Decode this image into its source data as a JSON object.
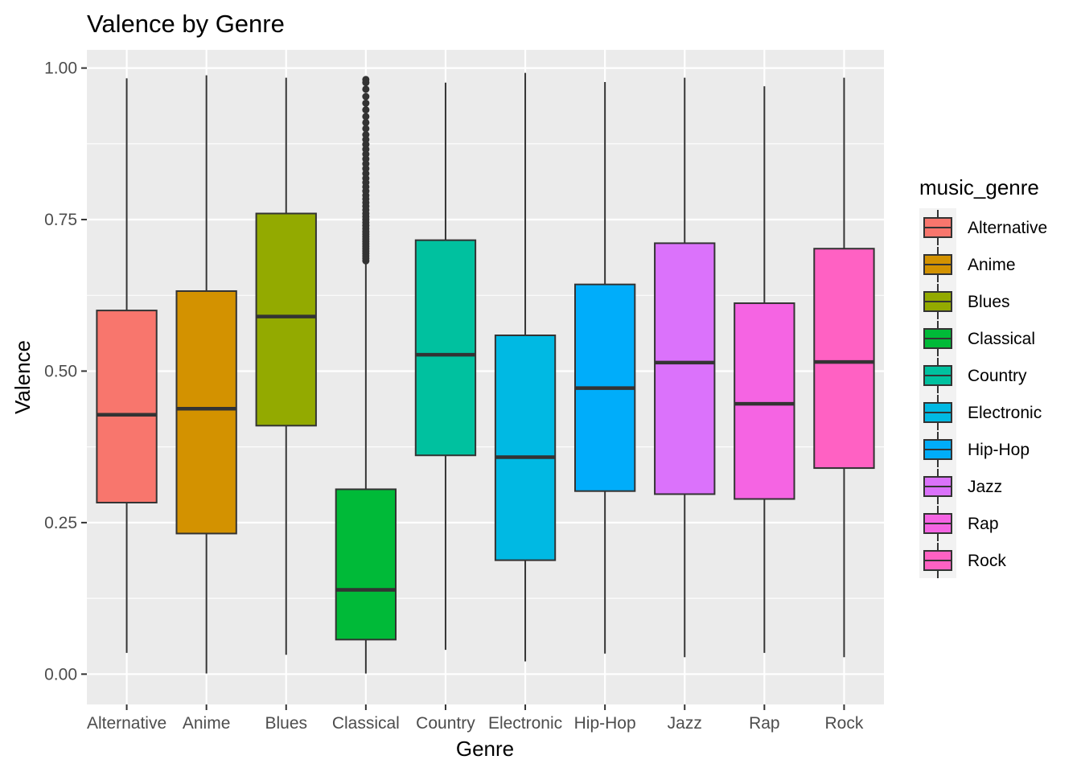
{
  "chart_data": {
    "type": "boxplot",
    "title": "Valence by Genre",
    "xlabel": "Genre",
    "ylabel": "Valence",
    "ylim": [
      -0.05,
      1.03
    ],
    "yticks": [
      0.0,
      0.25,
      0.5,
      0.75,
      1.0
    ],
    "ytick_labels": [
      "0.00",
      "0.25",
      "0.50",
      "0.75",
      "1.00"
    ],
    "grid": true,
    "legend": {
      "title": "music_genre",
      "position": "right"
    },
    "categories": [
      "Alternative",
      "Anime",
      "Blues",
      "Classical",
      "Country",
      "Electronic",
      "Hip-Hop",
      "Jazz",
      "Rap",
      "Rock"
    ],
    "series": [
      {
        "name": "Alternative",
        "color": "#F8766D",
        "whisker_low": 0.035,
        "q1": 0.283,
        "median": 0.428,
        "q3": 0.6,
        "whisker_high": 0.983
      },
      {
        "name": "Anime",
        "color": "#D39200",
        "whisker_low": 0.001,
        "q1": 0.232,
        "median": 0.438,
        "q3": 0.632,
        "whisker_high": 0.988
      },
      {
        "name": "Blues",
        "color": "#93AA00",
        "whisker_low": 0.032,
        "q1": 0.41,
        "median": 0.59,
        "q3": 0.76,
        "whisker_high": 0.984
      },
      {
        "name": "Classical",
        "color": "#00BA38",
        "whisker_low": 0.001,
        "q1": 0.057,
        "median": 0.139,
        "q3": 0.305,
        "whisker_high": 0.68,
        "outliers": [
          0.682,
          0.686,
          0.69,
          0.694,
          0.698,
          0.702,
          0.706,
          0.71,
          0.714,
          0.718,
          0.722,
          0.726,
          0.73,
          0.735,
          0.74,
          0.745,
          0.75,
          0.755,
          0.76,
          0.766,
          0.772,
          0.778,
          0.784,
          0.79,
          0.797,
          0.804,
          0.811,
          0.818,
          0.826,
          0.834,
          0.842,
          0.85,
          0.858,
          0.866,
          0.874,
          0.882,
          0.89,
          0.9,
          0.91,
          0.92,
          0.931,
          0.942,
          0.953,
          0.965,
          0.976,
          0.981
        ]
      },
      {
        "name": "Country",
        "color": "#00C19F",
        "whisker_low": 0.04,
        "q1": 0.361,
        "median": 0.527,
        "q3": 0.716,
        "whisker_high": 0.976
      },
      {
        "name": "Electronic",
        "color": "#00B9E3",
        "whisker_low": 0.021,
        "q1": 0.188,
        "median": 0.358,
        "q3": 0.559,
        "whisker_high": 0.992
      },
      {
        "name": "Hip-Hop",
        "color": "#00ADFA",
        "whisker_low": 0.034,
        "q1": 0.302,
        "median": 0.472,
        "q3": 0.643,
        "whisker_high": 0.977
      },
      {
        "name": "Jazz",
        "color": "#DB72FB",
        "whisker_low": 0.028,
        "q1": 0.297,
        "median": 0.514,
        "q3": 0.711,
        "whisker_high": 0.984
      },
      {
        "name": "Rap",
        "color": "#F564E3",
        "whisker_low": 0.035,
        "q1": 0.289,
        "median": 0.446,
        "q3": 0.612,
        "whisker_high": 0.97
      },
      {
        "name": "Rock",
        "color": "#FF61C3",
        "whisker_low": 0.028,
        "q1": 0.34,
        "median": 0.515,
        "q3": 0.702,
        "whisker_high": 0.984
      }
    ]
  }
}
